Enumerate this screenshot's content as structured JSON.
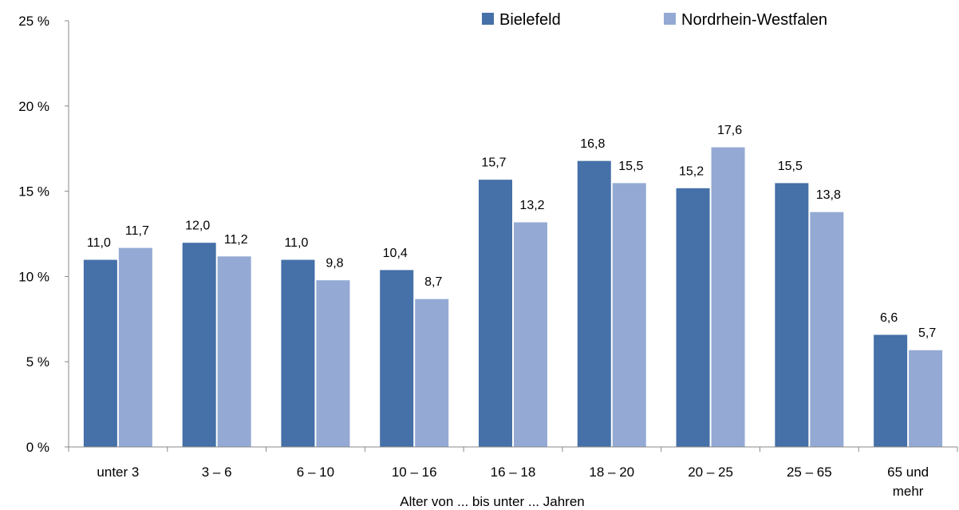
{
  "chart_data": {
    "type": "bar",
    "categories": [
      "unter 3",
      "3 –  6",
      "6 – 10",
      "10 – 16",
      "16 – 18",
      "18 – 20",
      "20 – 25",
      "25 – 65",
      "65 und mehr"
    ],
    "series": [
      {
        "name": "Bielefeld",
        "color": "#4570a8",
        "values": [
          11.0,
          12.0,
          11.0,
          10.4,
          15.7,
          16.8,
          15.2,
          15.5,
          6.6
        ],
        "labels": [
          "11,0",
          "12,0",
          "11,0",
          "10,4",
          "15,7",
          "16,8",
          "15,2",
          "15,5",
          "6,6"
        ]
      },
      {
        "name": "Nordrhein-Westfalen",
        "color": "#94aad4",
        "values": [
          11.7,
          11.2,
          9.8,
          8.7,
          13.2,
          15.5,
          17.6,
          13.8,
          5.7
        ],
        "labels": [
          "11,7",
          "11,2",
          "9,8",
          "8,7",
          "13,2",
          "15,5",
          "17,6",
          "13,8",
          "5,7"
        ]
      }
    ],
    "xlabel": "Alter von ... bis unter ... Jahren",
    "ylabel": "",
    "ylim": [
      0,
      25
    ],
    "yticks": [
      0,
      5,
      10,
      15,
      20,
      25
    ],
    "ytick_labels": [
      "0 %",
      "5 %",
      "10 %",
      "15 %",
      "20 %",
      "25 %"
    ],
    "grid": false,
    "legend_position": "top-right"
  }
}
